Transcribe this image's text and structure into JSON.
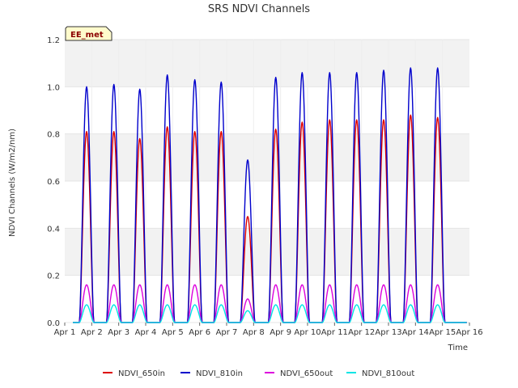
{
  "chart_data": {
    "type": "line",
    "title": "SRS NDVI Channels",
    "xlabel": "Time",
    "ylabel": "NDVI Channels (W/m2/nm)",
    "ylim": [
      0.0,
      1.2
    ],
    "xlim_days": [
      1,
      16
    ],
    "x_ticks": [
      "Apr 1",
      "Apr 2",
      "Apr 3",
      "Apr 4",
      "Apr 5",
      "Apr 6",
      "Apr 7",
      "Apr 8",
      "Apr 9",
      "Apr 10",
      "Apr 11",
      "Apr 12",
      "Apr 13",
      "Apr 14",
      "Apr 15",
      "Apr 16"
    ],
    "y_ticks": [
      "0.0",
      "0.2",
      "0.4",
      "0.6",
      "0.8",
      "1.0",
      "1.2"
    ],
    "grid": "alternating horizontal bands",
    "legend_position": "bottom-center",
    "annotation": "EE_met",
    "series": [
      {
        "name": "NDVI_650in",
        "color": "#dd0000",
        "peak_day": [
          1.81,
          2.82,
          3.78,
          4.8,
          5.82,
          6.8,
          7.78,
          8.82,
          9.8,
          10.82,
          11.82,
          12.82,
          13.82,
          14.82
        ],
        "daily_peak": [
          0.81,
          0.81,
          0.78,
          0.83,
          0.81,
          0.81,
          0.45,
          0.82,
          0.85,
          0.86,
          0.86,
          0.86,
          0.88,
          0.87
        ]
      },
      {
        "name": "NDVI_810in",
        "color": "#0000cc",
        "peak_day": [
          1.81,
          2.82,
          3.78,
          4.8,
          5.82,
          6.8,
          7.78,
          8.82,
          9.8,
          10.82,
          11.82,
          12.82,
          13.82,
          14.82
        ],
        "daily_peak": [
          1.0,
          1.01,
          0.99,
          1.05,
          1.03,
          1.02,
          0.69,
          1.04,
          1.06,
          1.06,
          1.06,
          1.07,
          1.08,
          1.08
        ]
      },
      {
        "name": "NDVI_650out",
        "color": "#dd00dd",
        "peak_day": [
          1.81,
          2.82,
          3.78,
          4.8,
          5.82,
          6.8,
          7.78,
          8.82,
          9.8,
          10.82,
          11.82,
          12.82,
          13.82,
          14.82
        ],
        "daily_peak": [
          0.16,
          0.16,
          0.16,
          0.16,
          0.16,
          0.16,
          0.1,
          0.16,
          0.16,
          0.16,
          0.16,
          0.16,
          0.16,
          0.16
        ]
      },
      {
        "name": "NDVI_810out",
        "color": "#00e5e5",
        "peak_day": [
          1.81,
          2.82,
          3.78,
          4.8,
          5.82,
          6.8,
          7.78,
          8.82,
          9.8,
          10.82,
          11.82,
          12.82,
          13.82,
          14.82
        ],
        "daily_peak": [
          0.075,
          0.075,
          0.075,
          0.075,
          0.075,
          0.075,
          0.05,
          0.075,
          0.075,
          0.075,
          0.075,
          0.075,
          0.075,
          0.075
        ]
      }
    ]
  }
}
